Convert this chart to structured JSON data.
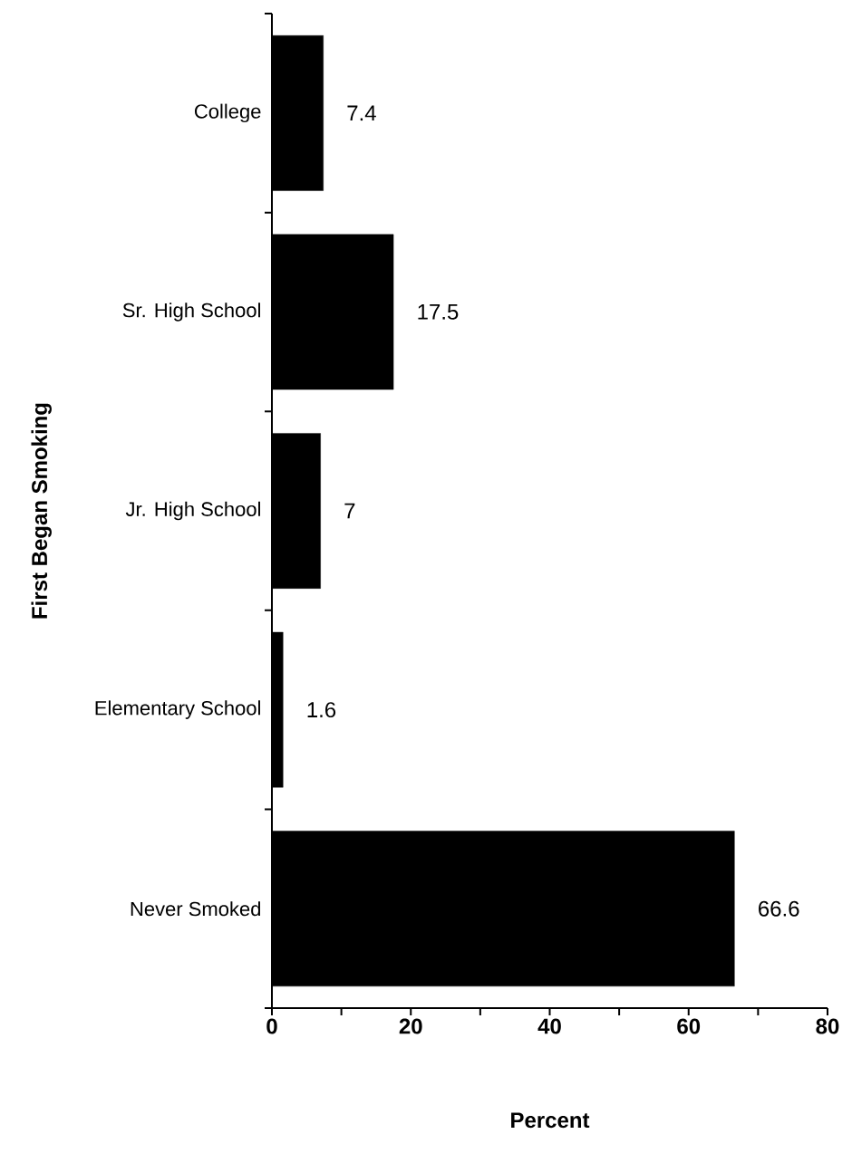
{
  "chart_data": {
    "type": "bar",
    "orientation": "horizontal",
    "xlabel": "Percent",
    "ylabel": "First Began Smoking",
    "categories": [
      "College",
      "Sr. High School",
      "Jr. High School",
      "Elementary School",
      "Never Smoked"
    ],
    "values": [
      7.4,
      17.5,
      7,
      1.6,
      66.6
    ],
    "color": "#000000",
    "xlim": [
      0,
      80
    ],
    "xticks": [
      0,
      20,
      40,
      60,
      80
    ],
    "data_labels": true
  }
}
